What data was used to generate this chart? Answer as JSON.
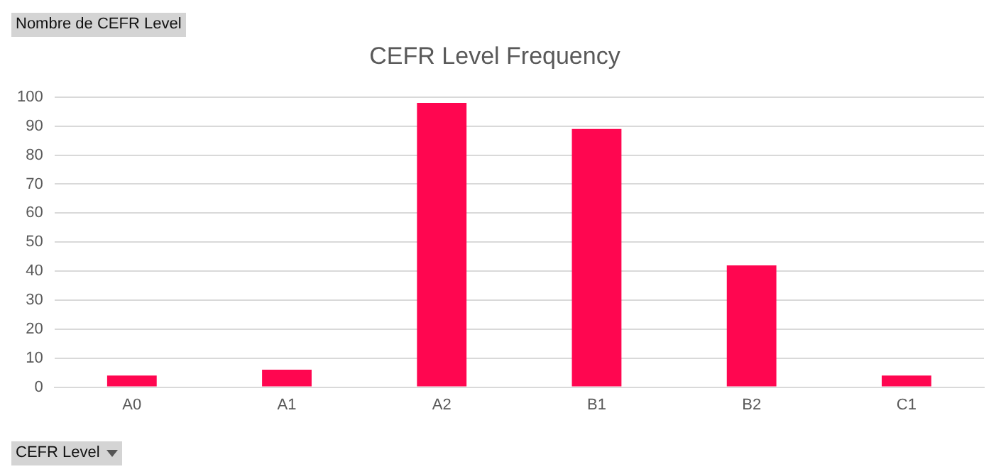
{
  "chart_data": {
    "type": "bar",
    "title": "CEFR Level Frequency",
    "ylabel": "Nombre de CEFR Level",
    "xlabel": "CEFR Level",
    "categories": [
      "A0",
      "A1",
      "A2",
      "B1",
      "B2",
      "C1"
    ],
    "values": [
      4,
      6,
      98,
      89,
      42,
      4
    ],
    "color": "#ff0650",
    "ylim": [
      0,
      100
    ],
    "yticks": [
      0,
      10,
      20,
      30,
      40,
      50,
      60,
      70,
      80,
      90,
      100
    ],
    "grid": "y",
    "legend": false
  }
}
